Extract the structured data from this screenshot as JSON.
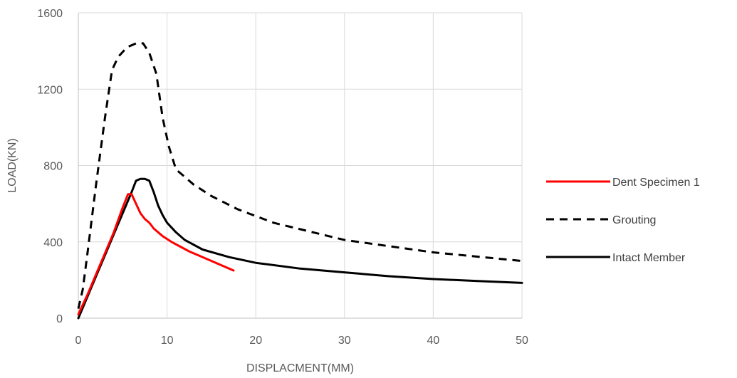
{
  "chart_data": {
    "type": "line",
    "title": "",
    "xlabel": "DISPLACMENT(MM)",
    "ylabel": "LOAD(KN)",
    "xlim": [
      0,
      50
    ],
    "ylim": [
      0,
      1600
    ],
    "xticks": [
      0,
      10,
      20,
      30,
      40,
      50
    ],
    "yticks": [
      0,
      400,
      800,
      1200,
      1600
    ],
    "grid": "vertical-and-horizontal",
    "legend_position": "right",
    "series": [
      {
        "name": "Dent Specimen 1",
        "color": "#ff0000",
        "dash": "solid",
        "x": [
          0,
          1,
          2,
          3,
          4,
          5,
          5.6,
          6,
          6.5,
          7,
          7.5,
          8,
          8.5,
          9,
          9.5,
          10.5,
          11.5,
          12.5,
          13.5,
          14.5,
          15.5,
          16.5,
          17.5
        ],
        "y": [
          20,
          120,
          230,
          340,
          450,
          580,
          650,
          650,
          600,
          550,
          520,
          500,
          470,
          450,
          430,
          400,
          375,
          350,
          330,
          310,
          290,
          270,
          250
        ]
      },
      {
        "name": "Grouting",
        "color": "#000000",
        "dash": "dashed",
        "x": [
          0,
          0.5,
          1,
          2,
          3,
          3.8,
          4.5,
          5.5,
          6.5,
          7.3,
          8,
          8.8,
          9.5,
          10.2,
          11,
          13,
          15,
          18,
          22,
          30,
          40,
          50
        ],
        "y": [
          50,
          150,
          330,
          700,
          1050,
          1300,
          1370,
          1420,
          1440,
          1440,
          1390,
          1280,
          1050,
          900,
          780,
          700,
          640,
          570,
          500,
          410,
          345,
          300
        ]
      },
      {
        "name": "Intact Member",
        "color": "#000000",
        "dash": "solid",
        "x": [
          0,
          1,
          2,
          3,
          4,
          5,
          6,
          6.5,
          7,
          7.5,
          8,
          8.5,
          9,
          9.5,
          10,
          11,
          12,
          14,
          17,
          20,
          25,
          30,
          35,
          40,
          45,
          50
        ],
        "y": [
          0,
          110,
          220,
          330,
          440,
          550,
          660,
          720,
          730,
          730,
          720,
          660,
          590,
          540,
          500,
          450,
          410,
          360,
          320,
          290,
          260,
          240,
          220,
          205,
          195,
          185
        ]
      }
    ]
  }
}
